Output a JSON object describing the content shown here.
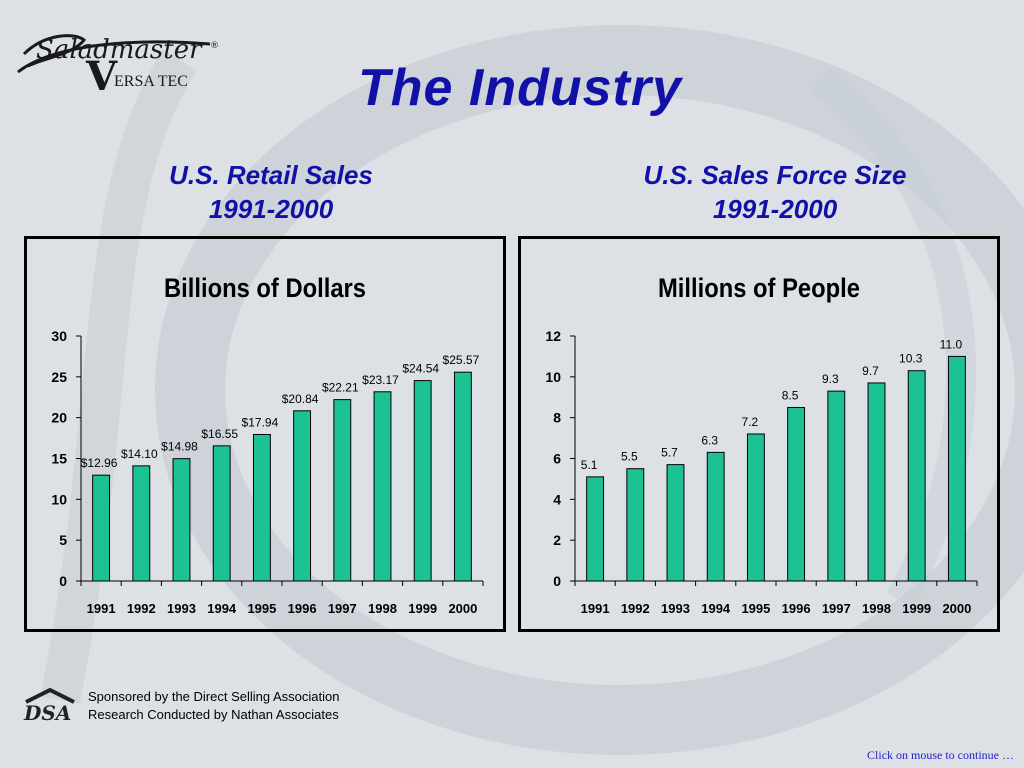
{
  "logo": {
    "brand": "Saladmaster",
    "sub": "ERSA TEC",
    "letter": "V"
  },
  "page_title": "The Industry",
  "charts": [
    {
      "heading_line1": "U.S. Retail Sales",
      "heading_line2": "1991-2000",
      "panel_title": "Billions of Dollars"
    },
    {
      "heading_line1": "U.S. Sales Force Size",
      "heading_line2": "1991-2000",
      "panel_title": "Millions of People"
    }
  ],
  "chart_data": [
    {
      "type": "bar",
      "title": "U.S. Retail Sales 1991-2000",
      "ylabel": "Billions of Dollars",
      "categories": [
        "1991",
        "1992",
        "1993",
        "1994",
        "1995",
        "1996",
        "1997",
        "1998",
        "1999",
        "2000"
      ],
      "values": [
        12.96,
        14.1,
        14.98,
        16.55,
        17.94,
        20.84,
        22.21,
        23.17,
        24.54,
        25.57
      ],
      "data_labels": [
        "$12.96",
        "$14.10",
        "$14.98",
        "$16.55",
        "$17.94",
        "$20.84",
        "$22.21",
        "$23.17",
        "$24.54",
        "$25.57"
      ],
      "ylim": [
        0,
        30
      ],
      "yticks": [
        0,
        5,
        10,
        15,
        20,
        25,
        30
      ],
      "bar_color": "#1cc294"
    },
    {
      "type": "bar",
      "title": "U.S. Sales Force Size 1991-2000",
      "ylabel": "Millions of People",
      "categories": [
        "1991",
        "1992",
        "1993",
        "1994",
        "1995",
        "1996",
        "1997",
        "1998",
        "1999",
        "2000"
      ],
      "values": [
        5.1,
        5.5,
        5.7,
        6.3,
        7.2,
        8.5,
        9.3,
        9.7,
        10.3,
        11.0
      ],
      "data_labels": [
        "5.1",
        "5.5",
        "5.7",
        "6.3",
        "7.2",
        "8.5",
        "9.3",
        "9.7",
        "10.3",
        "11.0"
      ],
      "ylim": [
        0,
        12
      ],
      "yticks": [
        0,
        2,
        4,
        6,
        8,
        10,
        12
      ],
      "bar_color": "#1cc294"
    }
  ],
  "footer": {
    "line1": "Sponsored by the Direct Selling Association",
    "line2": "Research Conducted by Nathan Associates",
    "logo_text": "DSA"
  },
  "continue_text": "Click on mouse to continue …"
}
